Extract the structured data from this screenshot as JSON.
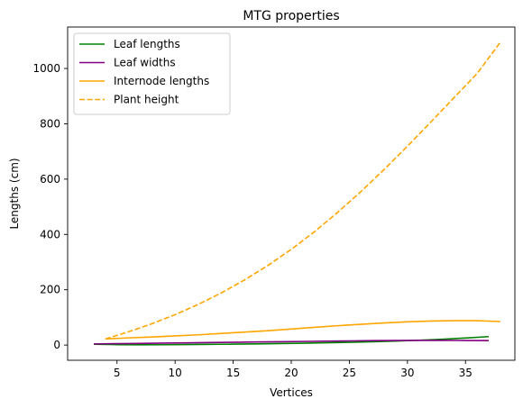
{
  "chart_data": {
    "type": "line",
    "title": "MTG properties",
    "xlabel": "Vertices",
    "ylabel": "Lengths (cm)",
    "xlim": [
      0.75,
      39.25
    ],
    "ylim": [
      -55,
      1150
    ],
    "xticks": [
      5,
      10,
      15,
      20,
      25,
      30,
      35
    ],
    "yticks": [
      0,
      200,
      400,
      600,
      800,
      1000
    ],
    "grid": false,
    "legend_position": "top-left",
    "series": [
      {
        "name": "Leaf lengths",
        "color": "#008000",
        "style": "solid",
        "x": [
          3,
          5,
          7,
          9,
          11,
          13,
          15,
          17,
          19,
          21,
          23,
          25,
          27,
          29,
          31,
          33,
          35,
          37
        ],
        "y": [
          3,
          1.5,
          1,
          1.2,
          1.8,
          2.5,
          3.3,
          4.3,
          5.4,
          6.7,
          8.2,
          10,
          12,
          14.5,
          17.5,
          21,
          25.5,
          30.5
        ]
      },
      {
        "name": "Leaf widths",
        "color": "#800080",
        "style": "solid",
        "x": [
          3,
          5,
          7,
          9,
          11,
          13,
          15,
          17,
          19,
          21,
          23,
          25,
          27,
          29,
          31,
          33,
          35,
          37
        ],
        "y": [
          4,
          5,
          6,
          7,
          8,
          9,
          10,
          11,
          12,
          13,
          14,
          15,
          16,
          16.5,
          17,
          17,
          16.5,
          16
        ]
      },
      {
        "name": "Internode lengths",
        "color": "#FFA500",
        "style": "solid",
        "x": [
          4,
          6,
          8,
          10,
          12,
          14,
          16,
          18,
          20,
          22,
          24,
          26,
          28,
          30,
          32,
          34,
          36,
          38
        ],
        "y": [
          22,
          26,
          29,
          33,
          37,
          42,
          47,
          52,
          58,
          64,
          70,
          75,
          80,
          84,
          87,
          88,
          88,
          85
        ]
      },
      {
        "name": "Plant height",
        "color": "#FFA500",
        "style": "dashed",
        "x": [
          4,
          6,
          8,
          10,
          12,
          14,
          16,
          18,
          20,
          22,
          24,
          26,
          28,
          30,
          32,
          34,
          36,
          38
        ],
        "y": [
          22,
          48,
          77,
          110,
          147,
          189,
          236,
          288,
          346,
          410,
          480,
          555,
          635,
          719,
          806,
          894,
          982,
          1095
        ]
      }
    ]
  }
}
